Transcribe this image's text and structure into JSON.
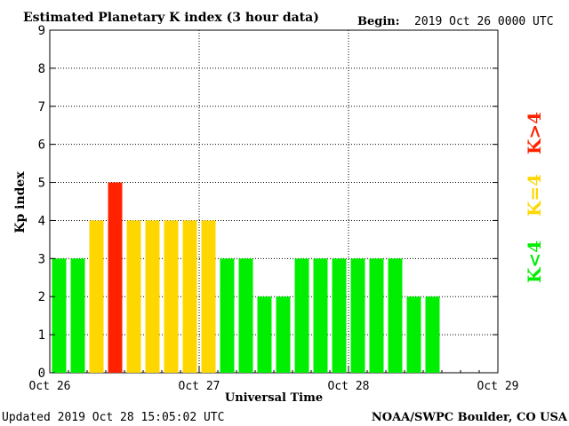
{
  "header": {
    "title": "Estimated Planetary K index (3 hour data)",
    "begin_label": "Begin:",
    "begin_value": "2019 Oct 26 0000 UTC"
  },
  "footer": {
    "updated": "Updated 2019 Oct 28 15:05:02 UTC",
    "source": "NOAA/SWPC Boulder, CO USA"
  },
  "legend": {
    "placement": "right",
    "items": [
      {
        "label": "K>4",
        "color": "#ff2200"
      },
      {
        "label": "K=4",
        "color": "#ffd700"
      },
      {
        "label": "K<4",
        "color": "#00ee00"
      }
    ]
  },
  "chart_data": {
    "type": "bar",
    "ylabel": "Kp index",
    "xlabel": "Universal Time",
    "ylim": [
      0,
      9
    ],
    "yticks": [
      "0",
      "1",
      "2",
      "3",
      "4",
      "5",
      "6",
      "7",
      "8",
      "9"
    ],
    "xticks": [
      "Oct 26",
      "Oct 27",
      "Oct 28",
      "Oct 29"
    ],
    "bars_per_day": 8,
    "days": 3,
    "grid": "dotted, major ticks only",
    "values": [
      3,
      3,
      4,
      5,
      4,
      4,
      4,
      4,
      4,
      3,
      3,
      2,
      2,
      3,
      3,
      3,
      3,
      3,
      3,
      2,
      2
    ],
    "colors": {
      "below4": "#00ee00",
      "equal4": "#ffd700",
      "above4": "#ff2200"
    }
  }
}
